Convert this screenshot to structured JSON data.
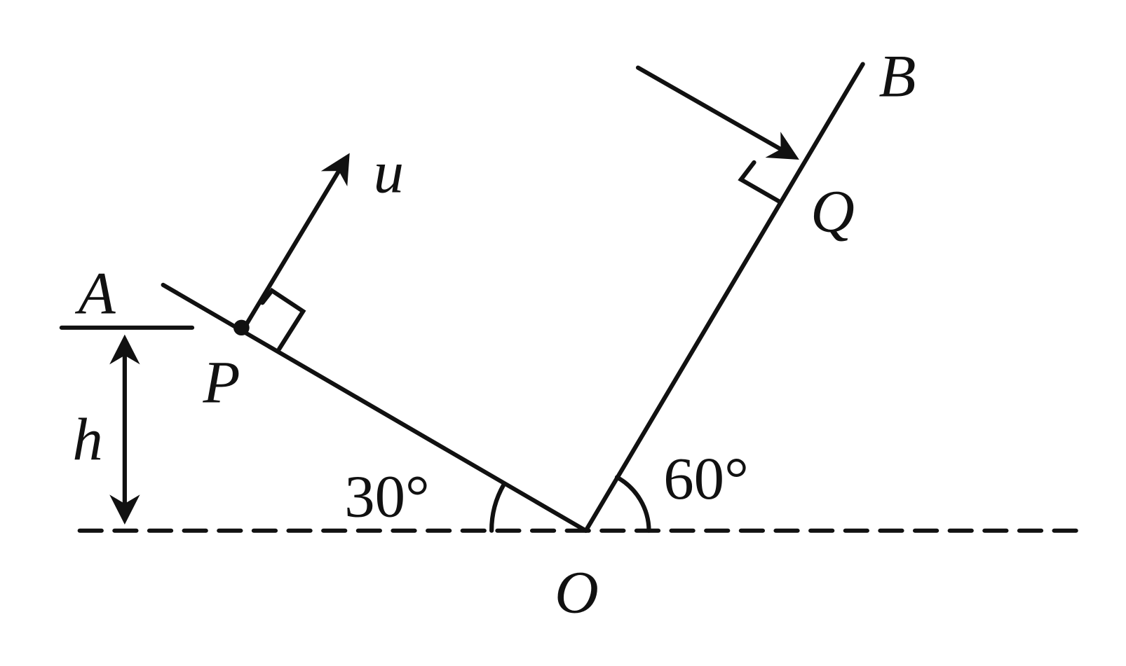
{
  "labels": {
    "a": "A",
    "b": "B",
    "p": "P",
    "q": "Q",
    "o": "O",
    "u": "u",
    "h": "h",
    "angle_left": "30°",
    "angle_right": "60°"
  }
}
